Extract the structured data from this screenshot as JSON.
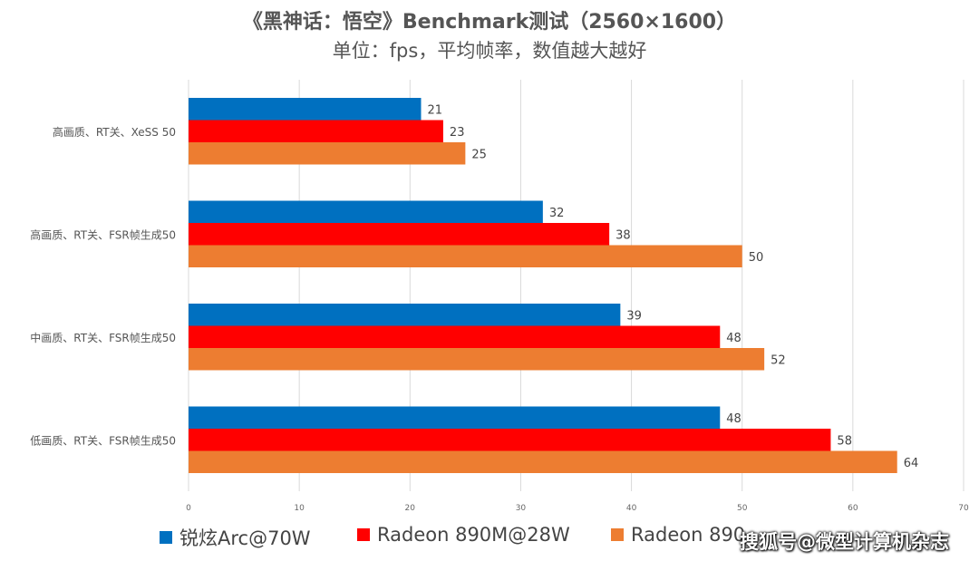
{
  "chart_data": {
    "type": "bar",
    "orientation": "horizontal",
    "title": "《黑神话：悟空》Benchmark测试（2560×1600）",
    "subtitle": "单位：fps，平均帧率，数值越大越好",
    "categories": [
      "高画质、RT关、XeSS 50",
      "高画质、RT关、FSR帧生成50",
      "中画质、RT关、FSR帧生成50",
      "低画质、RT关、FSR帧生成50"
    ],
    "series": [
      {
        "name": "锐炫Arc@70W",
        "color": "#0070C0",
        "values": [
          21,
          32,
          39,
          48
        ]
      },
      {
        "name": "Radeon 890M@28W",
        "color": "#FF0000",
        "values": [
          23,
          38,
          48,
          58
        ]
      },
      {
        "name": "Radeon 890",
        "color": "#ED7D31",
        "values": [
          25,
          50,
          52,
          64
        ]
      }
    ],
    "xlim": [
      0,
      70
    ],
    "xticks": [
      0,
      10,
      20,
      30,
      40,
      50,
      60,
      70
    ],
    "grid": true,
    "legend_position": "bottom"
  },
  "watermark": "搜狐号@微型计算机杂志"
}
